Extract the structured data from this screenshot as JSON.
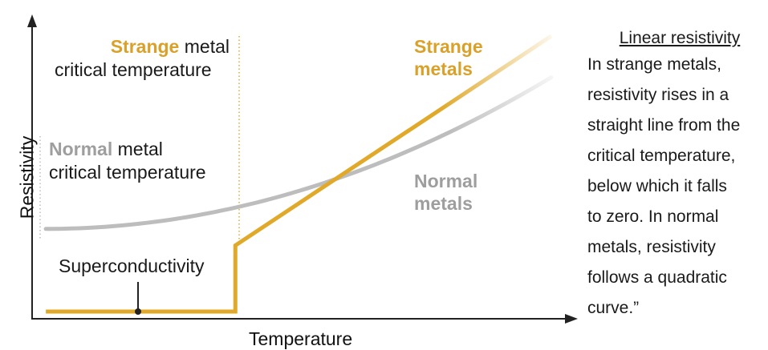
{
  "chart_data": {
    "type": "line",
    "xlabel": "Temperature",
    "ylabel": "Resistivity",
    "grid": false,
    "series": [
      {
        "name": "Strange metals",
        "color": "#E0A92A",
        "x": [
          0.02,
          0.38,
          0.38,
          0.98
        ],
        "y": [
          0.0,
          0.0,
          0.24,
          1.0
        ]
      },
      {
        "name": "Normal metals",
        "color": "#BDBDBD",
        "x": [
          0.02,
          0.02,
          0.98
        ],
        "y": [
          0.0,
          0.3,
          0.85
        ]
      }
    ],
    "annotations": {
      "strange_tc": {
        "prefix": "Strange",
        "rest_line1": " metal",
        "line2": "critical temperature"
      },
      "normal_tc": {
        "prefix": "Normal",
        "rest_line1": " metal",
        "line2": "critical temperature"
      },
      "strange_series": {
        "line1": "Strange",
        "line2": "metals"
      },
      "normal_series": {
        "line1": "Normal",
        "line2": "metals"
      },
      "superconductivity": "Superconductivity"
    }
  },
  "side_note": {
    "title": "Linear resistivity",
    "lines": [
      "In strange metals,",
      "resistivity rises in a",
      "straight line from the",
      "critical temperature,",
      "below which it falls",
      "to zero. In normal",
      "metals, resistivity",
      "follows a quadratic",
      "curve.”"
    ]
  },
  "colors": {
    "strange": "#D9A12A",
    "normal": "#9E9E9E",
    "axis": "#222222"
  }
}
